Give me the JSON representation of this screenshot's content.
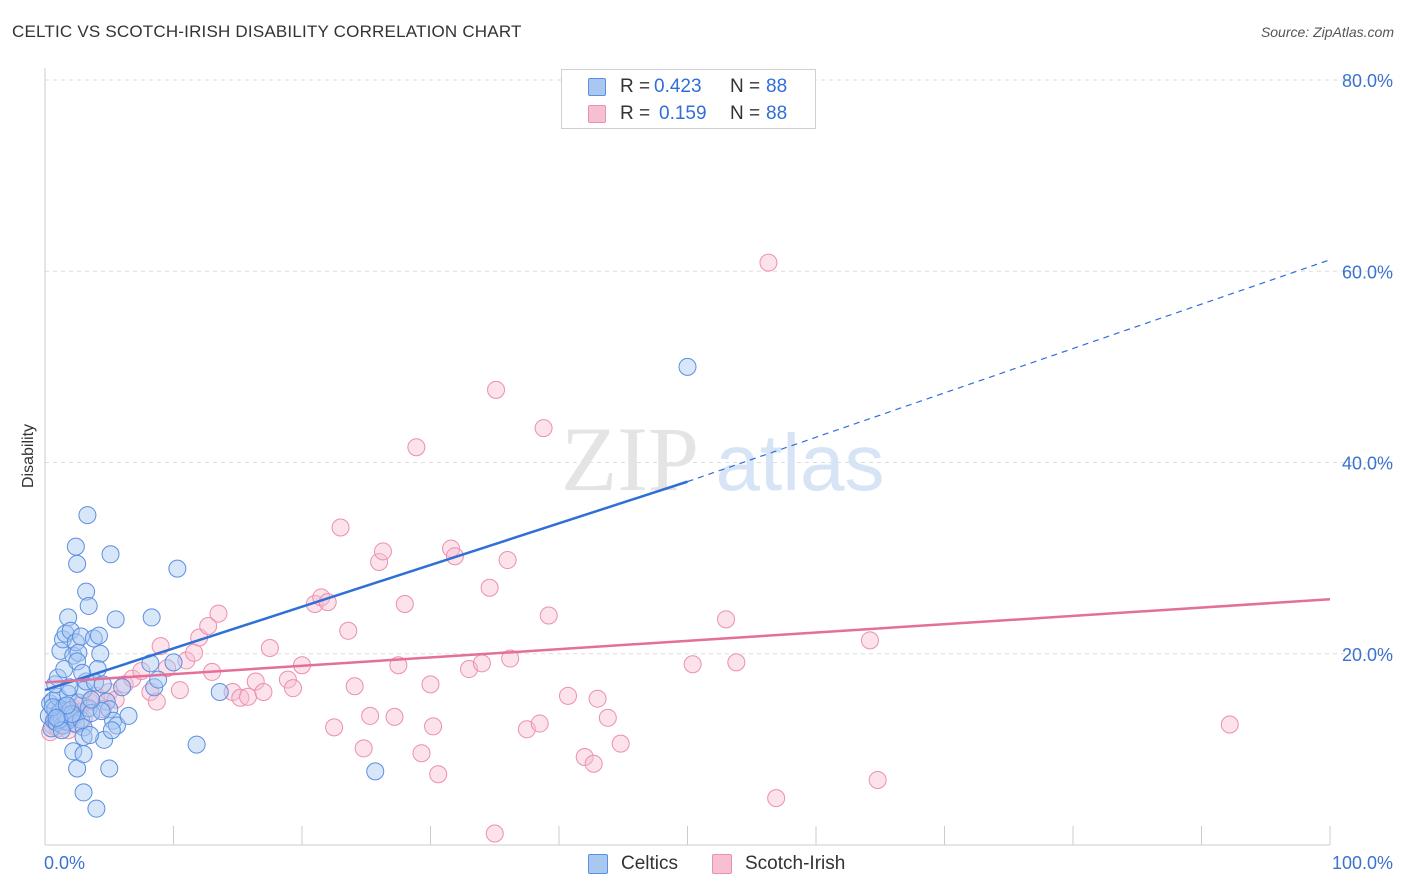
{
  "title": "CELTIC VS SCOTCH-IRISH DISABILITY CORRELATION CHART",
  "source": "Source: ZipAtlas.com",
  "watermark": {
    "zip": "ZIP",
    "atlas": "atlas"
  },
  "legend": {
    "rows": [
      {
        "r_label": "R =",
        "r_value": "0.423",
        "n_label": "N =",
        "n_value": "88"
      },
      {
        "r_label": "R =",
        "r_value": "0.159",
        "n_label": "N =",
        "n_value": "88"
      }
    ]
  },
  "bottom_legend": {
    "celtics": "Celtics",
    "scotch_irish": "Scotch-Irish"
  },
  "colors": {
    "blue": "#2f6fd6",
    "blue_fill": "#a8c8f2",
    "blue_stroke": "#5b8fe0",
    "pink": "#e46f98",
    "pink_fill": "#f6bfd2",
    "pink_stroke": "#ec8fb0",
    "grid": "#dddddd",
    "axis_text": "#3a72d0"
  },
  "chart_data": {
    "type": "scatter",
    "title": "CELTIC VS SCOTCH-IRISH DISABILITY CORRELATION CHART",
    "xlabel": "",
    "ylabel": "Disability",
    "xlim": [
      0,
      100
    ],
    "ylim": [
      0,
      80
    ],
    "x_tick_labels": [
      "0.0%",
      "100.0%"
    ],
    "y_ticks": [
      20,
      40,
      60,
      80
    ],
    "y_tick_labels": [
      "20.0%",
      "40.0%",
      "60.0%",
      "80.0%"
    ],
    "series": [
      {
        "name": "Celtics",
        "r": 0.423,
        "n": 88,
        "trend": {
          "x0": 0,
          "y0": 16.2,
          "x1": 50,
          "y1": 38.0,
          "dash_x_end": 100,
          "dash_y_end": 61.2
        },
        "points": [
          [
            0.3,
            13.5
          ],
          [
            0.4,
            14.8
          ],
          [
            0.5,
            12.2
          ],
          [
            0.6,
            15.1
          ],
          [
            0.7,
            13.0
          ],
          [
            0.8,
            14.2
          ],
          [
            0.9,
            12.8
          ],
          [
            1.0,
            15.5
          ],
          [
            1.1,
            13.8
          ],
          [
            1.2,
            14.0
          ],
          [
            1.3,
            13.2
          ],
          [
            1.4,
            12.5
          ],
          [
            1.5,
            14.5
          ],
          [
            1.6,
            13.6
          ],
          [
            1.7,
            12.9
          ],
          [
            1.8,
            15.8
          ],
          [
            2.0,
            14.1
          ],
          [
            2.2,
            13.4
          ],
          [
            2.4,
            12.7
          ],
          [
            2.6,
            14.9
          ],
          [
            2.8,
            13.1
          ],
          [
            3.0,
            12.3
          ],
          [
            0.8,
            16.8
          ],
          [
            1.0,
            17.5
          ],
          [
            1.2,
            20.3
          ],
          [
            1.4,
            21.5
          ],
          [
            1.6,
            22.1
          ],
          [
            1.8,
            23.8
          ],
          [
            2.0,
            22.4
          ],
          [
            2.2,
            19.8
          ],
          [
            2.4,
            21.2
          ],
          [
            2.6,
            20.1
          ],
          [
            2.8,
            21.8
          ],
          [
            3.0,
            16.2
          ],
          [
            3.2,
            17.1
          ],
          [
            3.4,
            14.3
          ],
          [
            3.6,
            13.8
          ],
          [
            3.8,
            21.6
          ],
          [
            1.5,
            18.4
          ],
          [
            2.5,
            19.2
          ],
          [
            1.9,
            16.5
          ],
          [
            2.9,
            18.0
          ],
          [
            2.4,
            31.2
          ],
          [
            2.5,
            29.4
          ],
          [
            3.2,
            26.5
          ],
          [
            3.4,
            25.0
          ],
          [
            3.3,
            34.5
          ],
          [
            5.1,
            30.4
          ],
          [
            5.5,
            23.6
          ],
          [
            4.2,
            21.9
          ],
          [
            4.3,
            20.0
          ],
          [
            4.1,
            18.4
          ],
          [
            3.9,
            17.0
          ],
          [
            4.5,
            16.8
          ],
          [
            4.8,
            15.0
          ],
          [
            5.0,
            14.2
          ],
          [
            5.3,
            13.0
          ],
          [
            5.6,
            12.5
          ],
          [
            3.0,
            11.3
          ],
          [
            4.6,
            11.0
          ],
          [
            5.2,
            12.0
          ],
          [
            4.4,
            14.0
          ],
          [
            3.6,
            15.2
          ],
          [
            2.2,
            9.8
          ],
          [
            2.5,
            8.0
          ],
          [
            3.0,
            9.5
          ],
          [
            3.5,
            11.5
          ],
          [
            3.0,
            5.5
          ],
          [
            4.0,
            3.8
          ],
          [
            5.0,
            8.0
          ],
          [
            6.0,
            16.5
          ],
          [
            6.5,
            13.5
          ],
          [
            8.3,
            23.8
          ],
          [
            8.5,
            16.5
          ],
          [
            8.8,
            17.3
          ],
          [
            8.2,
            19.0
          ],
          [
            10.0,
            19.1
          ],
          [
            10.3,
            28.9
          ],
          [
            11.8,
            10.5
          ],
          [
            13.6,
            16.0
          ],
          [
            25.7,
            7.7
          ],
          [
            50.0,
            50.0
          ],
          [
            1.1,
            13.1
          ],
          [
            0.6,
            14.4
          ],
          [
            1.3,
            12.0
          ],
          [
            2.1,
            13.7
          ],
          [
            1.7,
            14.6
          ],
          [
            0.9,
            13.3
          ]
        ]
      },
      {
        "name": "Scotch-Irish",
        "r": 0.159,
        "n": 88,
        "trend": {
          "x0": 0,
          "y0": 17.0,
          "x1": 100,
          "y1": 25.7
        },
        "points": [
          [
            0.4,
            11.8
          ],
          [
            0.6,
            12.5
          ],
          [
            0.8,
            13.0
          ],
          [
            1.0,
            12.2
          ],
          [
            1.2,
            13.4
          ],
          [
            1.4,
            12.8
          ],
          [
            1.6,
            14.1
          ],
          [
            1.8,
            12.0
          ],
          [
            2.0,
            13.6
          ],
          [
            2.2,
            14.3
          ],
          [
            2.4,
            12.6
          ],
          [
            2.6,
            13.9
          ],
          [
            2.8,
            14.6
          ],
          [
            3.0,
            13.2
          ],
          [
            3.5,
            15.0
          ],
          [
            4.0,
            15.6
          ],
          [
            4.5,
            14.2
          ],
          [
            5.0,
            16.0
          ],
          [
            5.5,
            15.2
          ],
          [
            6.2,
            16.8
          ],
          [
            6.8,
            17.4
          ],
          [
            7.5,
            18.2
          ],
          [
            8.2,
            16.0
          ],
          [
            8.7,
            15.0
          ],
          [
            9.0,
            20.8
          ],
          [
            9.5,
            18.5
          ],
          [
            10.5,
            16.2
          ],
          [
            11.0,
            19.3
          ],
          [
            11.6,
            20.1
          ],
          [
            12.0,
            21.7
          ],
          [
            12.7,
            22.9
          ],
          [
            13.5,
            24.2
          ],
          [
            13.0,
            18.1
          ],
          [
            14.6,
            16.0
          ],
          [
            15.2,
            15.4
          ],
          [
            15.8,
            15.5
          ],
          [
            16.4,
            17.1
          ],
          [
            17.0,
            16.0
          ],
          [
            17.5,
            20.6
          ],
          [
            18.9,
            17.3
          ],
          [
            19.3,
            16.4
          ],
          [
            20.0,
            18.8
          ],
          [
            21.0,
            25.2
          ],
          [
            21.5,
            25.9
          ],
          [
            22.0,
            25.4
          ],
          [
            22.5,
            12.3
          ],
          [
            23.0,
            33.2
          ],
          [
            23.6,
            22.4
          ],
          [
            24.1,
            16.6
          ],
          [
            24.8,
            10.1
          ],
          [
            25.3,
            13.5
          ],
          [
            26.0,
            29.6
          ],
          [
            26.3,
            30.7
          ],
          [
            27.2,
            13.4
          ],
          [
            27.5,
            18.8
          ],
          [
            28.0,
            25.2
          ],
          [
            28.9,
            41.6
          ],
          [
            29.3,
            9.6
          ],
          [
            30.0,
            16.8
          ],
          [
            30.2,
            12.4
          ],
          [
            30.6,
            7.4
          ],
          [
            31.6,
            31.0
          ],
          [
            31.9,
            30.2
          ],
          [
            33.0,
            18.4
          ],
          [
            34.0,
            19.0
          ],
          [
            34.6,
            26.9
          ],
          [
            35.1,
            47.6
          ],
          [
            36.0,
            29.8
          ],
          [
            36.2,
            19.5
          ],
          [
            37.5,
            12.1
          ],
          [
            38.5,
            12.7
          ],
          [
            38.8,
            43.6
          ],
          [
            39.2,
            24.0
          ],
          [
            40.7,
            15.6
          ],
          [
            42.0,
            9.2
          ],
          [
            42.7,
            8.5
          ],
          [
            43.0,
            15.3
          ],
          [
            43.8,
            13.3
          ],
          [
            44.8,
            10.6
          ],
          [
            50.4,
            18.9
          ],
          [
            53.0,
            23.6
          ],
          [
            53.8,
            19.1
          ],
          [
            56.3,
            60.9
          ],
          [
            56.9,
            4.9
          ],
          [
            64.2,
            21.4
          ],
          [
            64.8,
            6.8
          ],
          [
            92.2,
            12.6
          ],
          [
            35.0,
            1.2
          ]
        ]
      }
    ]
  }
}
